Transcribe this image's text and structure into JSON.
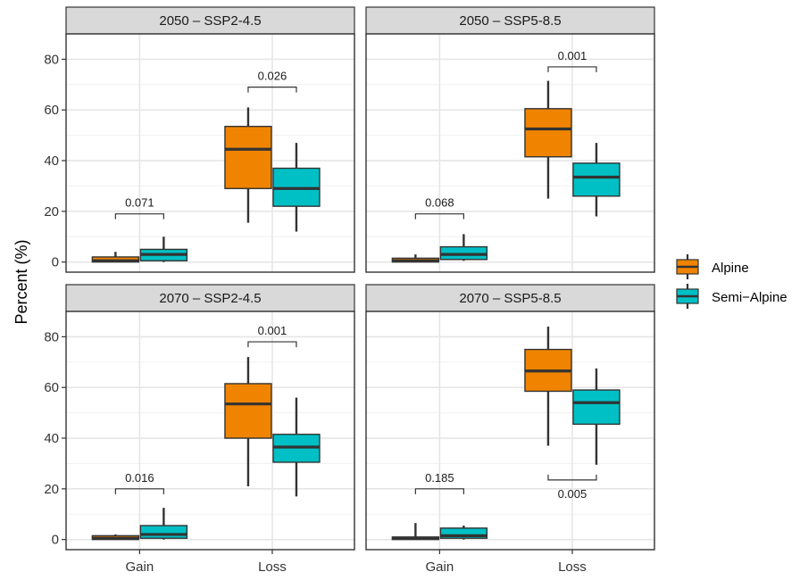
{
  "chart_data": {
    "type": "box",
    "ylabel": "Percent (%)",
    "xlabel": "",
    "categories": [
      "Gain",
      "Loss"
    ],
    "ylim": [
      -4,
      90
    ],
    "yticks": [
      0,
      20,
      40,
      60,
      80
    ],
    "grid": true,
    "legend": {
      "position": "right",
      "entries": [
        {
          "name": "Alpine",
          "color": "#f08400"
        },
        {
          "name": "Semi−Alpine",
          "color": "#00c0c5"
        }
      ]
    },
    "panels": [
      {
        "title": "2050 – SSP2-4.5",
        "boxes": {
          "Gain": {
            "Alpine": {
              "min": 0,
              "q1": 0,
              "median": 0.5,
              "q3": 2,
              "max": 4
            },
            "Semi-Alpine": {
              "min": 0,
              "q1": 0.5,
              "median": 3,
              "q3": 5,
              "max": 10
            }
          },
          "Loss": {
            "Alpine": {
              "min": 15.5,
              "q1": 29,
              "median": 44.5,
              "q3": 53.5,
              "max": 61
            },
            "Semi-Alpine": {
              "min": 12,
              "q1": 22,
              "median": 29,
              "q3": 37,
              "max": 47
            }
          }
        },
        "pvalues": {
          "Gain": "0.071",
          "Loss": "0.026"
        },
        "bracket_y": {
          "Gain": 19,
          "Loss": 69
        }
      },
      {
        "title": "2050 – SSP5-8.5",
        "boxes": {
          "Gain": {
            "Alpine": {
              "min": 0,
              "q1": 0,
              "median": 0.5,
              "q3": 1.5,
              "max": 3
            },
            "Semi-Alpine": {
              "min": 0.5,
              "q1": 1,
              "median": 3,
              "q3": 6,
              "max": 11
            }
          },
          "Loss": {
            "Alpine": {
              "min": 25,
              "q1": 41.5,
              "median": 52.5,
              "q3": 60.5,
              "max": 71.5
            },
            "Semi-Alpine": {
              "min": 18,
              "q1": 26,
              "median": 33.5,
              "q3": 39,
              "max": 47
            }
          }
        },
        "pvalues": {
          "Gain": "0.068",
          "Loss": "0.001"
        },
        "bracket_y": {
          "Gain": 19,
          "Loss": 77
        }
      },
      {
        "title": "2070 – SSP2-4.5",
        "boxes": {
          "Gain": {
            "Alpine": {
              "min": 0,
              "q1": 0,
              "median": 0.5,
              "q3": 1.5,
              "max": 2
            },
            "Semi-Alpine": {
              "min": 0,
              "q1": 0.5,
              "median": 2,
              "q3": 5.5,
              "max": 12.5
            }
          },
          "Loss": {
            "Alpine": {
              "min": 21,
              "q1": 40,
              "median": 53.5,
              "q3": 61.5,
              "max": 72
            },
            "Semi-Alpine": {
              "min": 17,
              "q1": 30.5,
              "median": 36.5,
              "q3": 41.5,
              "max": 56
            }
          }
        },
        "pvalues": {
          "Gain": "0.016",
          "Loss": "0.001"
        },
        "bracket_y": {
          "Gain": 20,
          "Loss": 78
        }
      },
      {
        "title": "2070 – SSP5-8.5",
        "boxes": {
          "Gain": {
            "Alpine": {
              "min": 0,
              "q1": 0,
              "median": 0.5,
              "q3": 1,
              "max": 6.5
            },
            "Semi-Alpine": {
              "min": 0,
              "q1": 0.5,
              "median": 1.5,
              "q3": 4.5,
              "max": 5.5
            }
          },
          "Loss": {
            "Alpine": {
              "min": 37,
              "q1": 58.5,
              "median": 66.5,
              "q3": 75,
              "max": 84
            },
            "Semi-Alpine": {
              "min": 29.5,
              "q1": 45.5,
              "median": 54,
              "q3": 59,
              "max": 67.5
            }
          }
        },
        "pvalues": {
          "Gain": "0.185",
          "Loss": "0.005"
        },
        "bracket_y": {
          "Gain": 20,
          "Loss": 23.5
        },
        "bracket_below": {
          "Loss": true
        }
      }
    ]
  }
}
